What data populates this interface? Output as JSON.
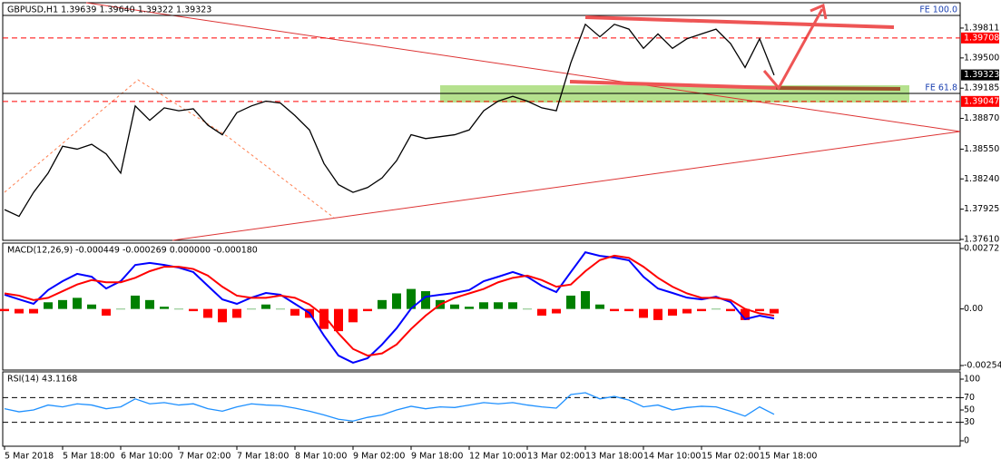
{
  "chart_data": [
    {
      "type": "line",
      "title": "GBPUSD,H1  1.39639 1.39640 1.39322 1.39323",
      "categories": [
        "5 Mar 2018",
        null,
        null,
        null,
        "5 Mar 18:00",
        null,
        null,
        null,
        "6 Mar 10:00",
        null,
        null,
        null,
        "7 Mar 02:00",
        null,
        null,
        null,
        "7 Mar 18:00",
        null,
        null,
        null,
        "8 Mar 10:00",
        null,
        null,
        null,
        "9 Mar 02:00",
        null,
        null,
        null,
        "9 Mar 18:00",
        null,
        null,
        null,
        "12 Mar 10:00",
        null,
        null,
        null,
        "13 Mar 02:00",
        null,
        null,
        null,
        "13 Mar 18:00",
        null,
        null,
        null,
        "14 Mar 10:00",
        null,
        null,
        null,
        "15 Mar 02:00",
        null,
        null,
        null,
        "15 Mar 18:00",
        null
      ],
      "values": [
        1.3792,
        1.3785,
        1.381,
        1.383,
        1.3858,
        1.3855,
        1.386,
        1.385,
        1.383,
        1.39,
        1.3885,
        1.3898,
        1.3895,
        1.3897,
        1.388,
        1.387,
        1.3893,
        1.39,
        1.3905,
        1.3903,
        1.389,
        1.3875,
        1.384,
        1.3818,
        1.381,
        1.3815,
        1.3825,
        1.3843,
        1.387,
        1.3866,
        1.3868,
        1.387,
        1.3875,
        1.3895,
        1.3905,
        1.391,
        1.3905,
        1.3898,
        1.3895,
        1.3945,
        1.3985,
        1.3972,
        1.3985,
        1.398,
        1.396,
        1.3975,
        1.396,
        1.397,
        1.3975,
        1.398,
        1.3965,
        1.394,
        1.397,
        1.3932
      ],
      "color": "#000000",
      "ylim": [
        1.376,
        1.40075
      ],
      "yticks": [
        1.39811,
        {
          "value": 1.395,
          "label": "1.39500"
        },
        1.39185,
        {
          "value": 1.3887,
          "label": "1.38870"
        },
        {
          "value": 1.3855,
          "label": "1.38550"
        },
        {
          "value": 1.3824,
          "label": "1.38240"
        },
        1.37925,
        {
          "value": 1.3761,
          "label": "1.37610"
        }
      ],
      "levels": [
        {
          "value": 1.39708,
          "color": "#ff0000",
          "line": "dashed"
        },
        {
          "value": 1.39323,
          "color": "#000000",
          "line": "none"
        },
        {
          "value": 1.39047,
          "color": "#ff0000",
          "line": "dashed"
        }
      ],
      "annotations": [
        "FE 100.0",
        "FE 61.8"
      ]
    },
    {
      "type": "line",
      "title": "MACD(12,26,9) -0.000449 -0.000269 0.000000 -0.000180",
      "series": [
        {
          "type": "bar",
          "color": "#008000",
          "negative_color": "#ff0000",
          "values": [
            -0.0001,
            -0.0002,
            -0.0002,
            0.0003,
            0.0004,
            0.0005,
            0.0002,
            -0.0003,
            0.0,
            0.0006,
            0.0004,
            0.0001,
            0.0,
            -0.0001,
            -0.0004,
            -0.0006,
            -0.0004,
            0.0,
            0.0002,
            0.0,
            -0.0003,
            -0.0004,
            -0.0009,
            -0.001,
            -0.0006,
            -0.0001,
            0.0004,
            0.0007,
            0.0009,
            0.0008,
            0.0004,
            0.0002,
            0.0001,
            0.0003,
            0.0003,
            0.0003,
            0.0,
            -0.0003,
            -0.0002,
            0.0006,
            0.0008,
            0.0002,
            -0.0001,
            -0.0001,
            -0.0004,
            -0.0005,
            -0.0003,
            -0.0002,
            -0.0001,
            0.0,
            -0.0001,
            -0.0005,
            -0.0001,
            -0.0002
          ]
        },
        {
          "type": "line",
          "color": "#0000ff",
          "values": [
            0.00064,
            0.00043,
            0.00023,
            0.00085,
            0.00125,
            0.00158,
            0.00145,
            0.00092,
            0.00125,
            0.00198,
            0.00207,
            0.00198,
            0.00186,
            0.00166,
            0.00104,
            0.00043,
            0.00023,
            0.00051,
            0.00072,
            0.00064,
            0.00023,
            -0.00018,
            -0.0012,
            -0.0021,
            -0.00242,
            -0.00222,
            -0.0016,
            -0.00087,
            2e-05,
            0.00055,
            0.00064,
            0.00072,
            0.00085,
            0.00125,
            0.00145,
            0.00166,
            0.00145,
            0.00104,
            0.00076,
            0.00166,
            0.00255,
            0.00239,
            0.00231,
            0.00219,
            0.00145,
            0.00092,
            0.00072,
            0.00051,
            0.00043,
            0.00055,
            0.00031,
            -0.00046,
            -0.0003,
            -0.00043
          ]
        },
        {
          "type": "line",
          "color": "#ff0000",
          "values": [
            0.0007,
            0.0006,
            0.0004,
            0.0005,
            0.0008,
            0.0011,
            0.0013,
            0.0012,
            0.0012,
            0.0014,
            0.0017,
            0.0019,
            0.0019,
            0.0018,
            0.0015,
            0.001,
            0.0006,
            0.0005,
            0.0005,
            0.0006,
            0.0005,
            0.0002,
            -0.0003,
            -0.0011,
            -0.0018,
            -0.0021,
            -0.002,
            -0.0016,
            -0.0009,
            -0.0003,
            0.0002,
            0.0005,
            0.0007,
            0.0009,
            0.0012,
            0.0014,
            0.0015,
            0.0013,
            0.001,
            0.0011,
            0.0017,
            0.0022,
            0.0024,
            0.0023,
            0.0019,
            0.0014,
            0.001,
            0.0007,
            0.0005,
            0.0005,
            0.0004,
            0.0,
            -0.0002,
            -0.0003
          ]
        }
      ],
      "ylim": [
        -0.00275,
        0.002965
      ],
      "yticks": [
        0.00272,
        {
          "value": 0,
          "label": "0.00"
        },
        -0.002547
      ]
    },
    {
      "type": "line",
      "title": "RSI(14) 43.1168",
      "color": "#1e90ff",
      "values": [
        52,
        47,
        50,
        58,
        55,
        60,
        58,
        52,
        55,
        68,
        60,
        62,
        58,
        60,
        52,
        48,
        55,
        60,
        58,
        57,
        53,
        48,
        42,
        35,
        32,
        38,
        42,
        50,
        56,
        52,
        55,
        54,
        58,
        62,
        60,
        62,
        58,
        55,
        53,
        75,
        78,
        68,
        72,
        66,
        55,
        58,
        50,
        54,
        56,
        55,
        48,
        40,
        55,
        43
      ],
      "ylim": [
        -8.8,
        111.8
      ],
      "yticks": [
        100,
        70,
        50,
        30,
        0
      ],
      "levels": [
        {
          "value": 70,
          "color": "#000000",
          "line": "dashed"
        },
        {
          "value": 30,
          "color": "#000000",
          "line": "dashed"
        }
      ]
    }
  ]
}
